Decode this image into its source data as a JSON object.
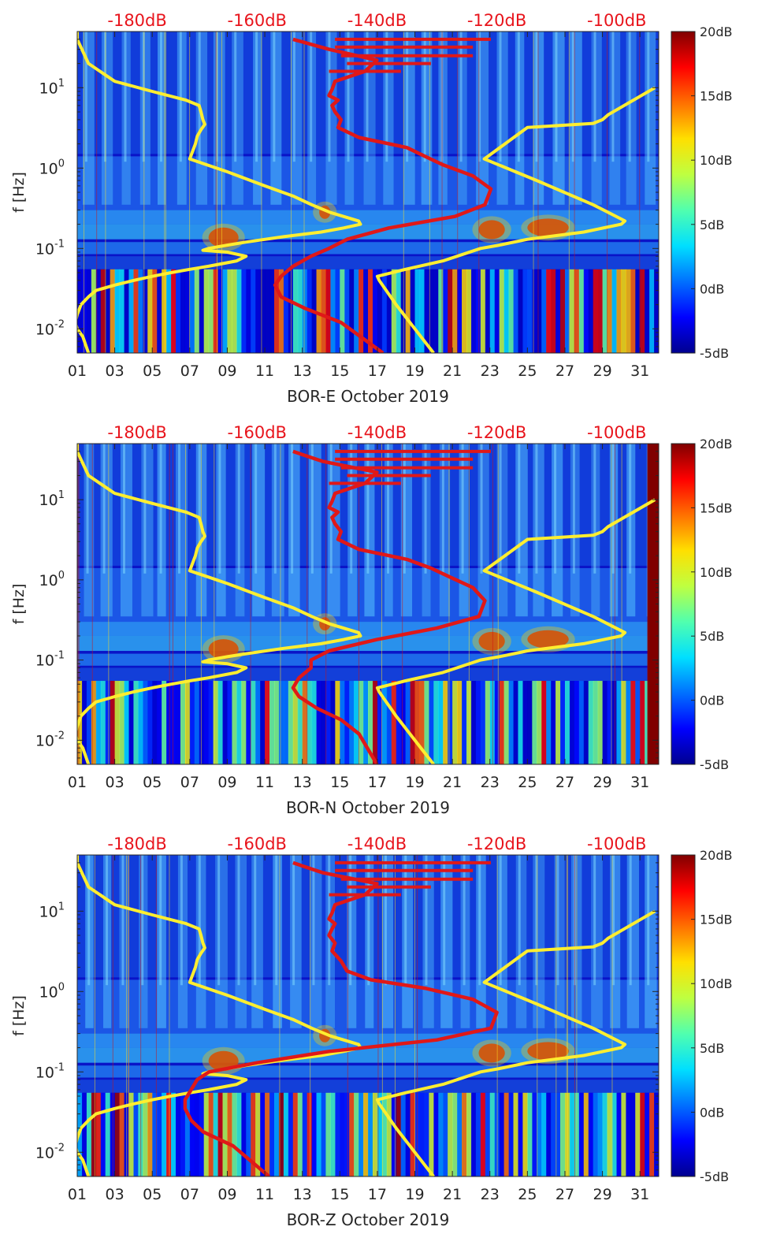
{
  "figure": {
    "colorbar_colors": [
      "#00008f",
      "#0000ff",
      "#0070ff",
      "#00dfff",
      "#50ffaf",
      "#bfff40",
      "#ffdf00",
      "#ff7000",
      "#ff0000",
      "#800000"
    ],
    "overlay_colors": {
      "noise_model": "#ffee30",
      "spectrum": "#e01818"
    }
  },
  "chart_data": [
    {
      "type": "heatmap",
      "xlabel": "BOR-E October 2019",
      "ylabel": "f [Hz]",
      "x_range_days": [
        1,
        32
      ],
      "x_ticks": [
        "01",
        "03",
        "05",
        "07",
        "09",
        "11",
        "13",
        "15",
        "17",
        "19",
        "21",
        "23",
        "25",
        "27",
        "29",
        "31"
      ],
      "y_scale": "log",
      "y_range_hz": [
        0.005,
        50
      ],
      "y_ticks": [
        {
          "value": 0.01,
          "base": "10",
          "exp": "-2"
        },
        {
          "value": 0.1,
          "base": "10",
          "exp": "-1"
        },
        {
          "value": 1,
          "base": "10",
          "exp": "0"
        },
        {
          "value": 10,
          "base": "10",
          "exp": "1"
        }
      ],
      "top_axis_labels": [
        "-180dB",
        "-160dB",
        "-140dB",
        "-120dB",
        "-100dB"
      ],
      "top_axis_range_db": [
        -190,
        -93
      ],
      "colorbar": {
        "range_db": [
          -5,
          20
        ],
        "ticks": [
          "20dB",
          "15dB",
          "10dB",
          "5dB",
          "0dB",
          "-5dB"
        ]
      },
      "noise_model_lines": [
        {
          "name": "",
          "x": [
            1.0,
            1.0,
            1.6,
            3.0,
            5.0,
            6.8,
            7.5,
            7.6,
            7.7,
            7.8,
            7.6,
            7.4,
            7.3,
            7.0,
            9.0,
            11.0,
            12.5,
            13.5,
            14.5,
            16.0,
            16.1,
            15.2,
            14.0,
            12.0,
            10.0,
            9.0,
            8.0,
            7.7,
            9.0,
            10.0,
            9.5,
            8.0,
            7.0,
            6.0,
            5.0,
            4.0,
            3.0,
            2.0,
            1.6,
            1.2,
            1.0,
            0.9,
            1.0,
            1.3,
            1.6
          ],
          "y": [
            50,
            40,
            20,
            12,
            9,
            7,
            6,
            5,
            4,
            3.5,
            3,
            2.5,
            2,
            1.3,
            0.9,
            0.6,
            0.45,
            0.35,
            0.28,
            0.22,
            0.2,
            0.18,
            0.16,
            0.14,
            0.12,
            0.11,
            0.1,
            0.095,
            0.09,
            0.08,
            0.07,
            0.06,
            0.055,
            0.05,
            0.045,
            0.04,
            0.035,
            0.03,
            0.025,
            0.02,
            0.015,
            0.012,
            0.01,
            0.008,
            0.005
          ]
        },
        {
          "name": "",
          "x": [
            31.8,
            29.3,
            29.0,
            28.5,
            25.0,
            22.7,
            25.5,
            28.5,
            30.2,
            30.0,
            28.0,
            25.0,
            23.5,
            22.5,
            20.5,
            18.5,
            17.0,
            17.1,
            18.0,
            19.0,
            20.0
          ],
          "y": [
            10,
            4.6,
            4.0,
            3.6,
            3.2,
            1.3,
            0.7,
            0.35,
            0.22,
            0.2,
            0.16,
            0.13,
            0.11,
            0.1,
            0.07,
            0.055,
            0.045,
            0.04,
            0.02,
            0.01,
            0.005
          ]
        }
      ],
      "spectrum_db": [
        -154,
        -148,
        -140,
        -142,
        -147,
        -147.5,
        -148,
        -146.5,
        -147.5,
        -147,
        -146,
        -146.5,
        -143,
        -135,
        -132,
        -129,
        -124,
        -121,
        -122,
        -127,
        -138,
        -145,
        -148,
        -151,
        -154,
        -156,
        -157,
        -156,
        -152,
        -146,
        -139
      ],
      "spectrum_f_hz": [
        40,
        30,
        22,
        16,
        12,
        9.5,
        8,
        7,
        6,
        5,
        4,
        3.2,
        2.4,
        1.8,
        1.4,
        1.1,
        0.8,
        0.55,
        0.35,
        0.25,
        0.18,
        0.13,
        0.1,
        0.08,
        0.06,
        0.045,
        0.035,
        0.025,
        0.018,
        0.012,
        0.005
      ],
      "spectrum_fine_lines_db": [
        [
          -147,
          -121
        ],
        [
          -147,
          -124
        ],
        [
          -146,
          -124
        ],
        [
          -145,
          -131
        ],
        [
          -148,
          -136
        ]
      ],
      "spectrum_fine_lines_f_hz": [
        40,
        32,
        25,
        20,
        16
      ]
    },
    {
      "type": "heatmap",
      "xlabel": "BOR-N October 2019",
      "ylabel": "f [Hz]",
      "x_range_days": [
        1,
        32
      ],
      "x_ticks": [
        "01",
        "03",
        "05",
        "07",
        "09",
        "11",
        "13",
        "15",
        "17",
        "19",
        "21",
        "23",
        "25",
        "27",
        "29",
        "31"
      ],
      "y_scale": "log",
      "y_range_hz": [
        0.005,
        50
      ],
      "y_ticks": [
        {
          "value": 0.01,
          "base": "10",
          "exp": "-2"
        },
        {
          "value": 0.1,
          "base": "10",
          "exp": "-1"
        },
        {
          "value": 1,
          "base": "10",
          "exp": "0"
        },
        {
          "value": 10,
          "base": "10",
          "exp": "1"
        }
      ],
      "top_axis_labels": [
        "-180dB",
        "-160dB",
        "-140dB",
        "-120dB",
        "-100dB"
      ],
      "top_axis_range_db": [
        -190,
        -93
      ],
      "colorbar": {
        "range_db": [
          -5,
          20
        ],
        "ticks": [
          "20dB",
          "15dB",
          "10dB",
          "5dB",
          "0dB",
          "-5dB"
        ]
      },
      "noise_model_lines": [
        {
          "name": "",
          "x": [
            1.0,
            1.0,
            1.6,
            3.0,
            5.0,
            6.8,
            7.5,
            7.6,
            7.7,
            7.8,
            7.6,
            7.4,
            7.3,
            7.0,
            9.0,
            11.0,
            12.5,
            13.5,
            14.5,
            16.0,
            16.1,
            15.2,
            14.0,
            12.0,
            10.0,
            9.0,
            8.0,
            7.7,
            9.0,
            10.0,
            9.5,
            8.0,
            7.0,
            6.0,
            5.0,
            4.0,
            3.0,
            2.0,
            1.6,
            1.2,
            1.0,
            0.9,
            1.0,
            1.3,
            1.6
          ],
          "y": [
            50,
            40,
            20,
            12,
            9,
            7,
            6,
            5,
            4,
            3.5,
            3,
            2.5,
            2,
            1.3,
            0.9,
            0.6,
            0.45,
            0.35,
            0.28,
            0.22,
            0.2,
            0.18,
            0.16,
            0.14,
            0.12,
            0.11,
            0.1,
            0.095,
            0.09,
            0.08,
            0.07,
            0.06,
            0.055,
            0.05,
            0.045,
            0.04,
            0.035,
            0.03,
            0.025,
            0.02,
            0.015,
            0.012,
            0.01,
            0.008,
            0.005
          ]
        },
        {
          "name": "",
          "x": [
            31.8,
            29.3,
            29.0,
            28.5,
            25.0,
            22.7,
            25.5,
            28.5,
            30.2,
            30.0,
            28.0,
            25.0,
            23.5,
            22.5,
            20.5,
            18.5,
            17.0,
            17.1,
            18.0,
            19.0,
            20.0
          ],
          "y": [
            10,
            4.6,
            4.0,
            3.6,
            3.2,
            1.3,
            0.7,
            0.35,
            0.22,
            0.2,
            0.16,
            0.13,
            0.11,
            0.1,
            0.07,
            0.055,
            0.045,
            0.04,
            0.02,
            0.01,
            0.005
          ]
        }
      ],
      "spectrum_db": [
        -154,
        -149,
        -140,
        -142,
        -147,
        -147.5,
        -148,
        -146.5,
        -147.5,
        -147,
        -146,
        -146.5,
        -143,
        -135,
        -131,
        -128,
        -124,
        -122,
        -123,
        -130,
        -140,
        -148,
        -151,
        -151,
        -153,
        -154,
        -153,
        -150,
        -146,
        -143,
        -140
      ],
      "spectrum_f_hz": [
        40,
        30,
        22,
        16,
        12,
        9.5,
        8,
        7,
        6,
        5,
        4,
        3.2,
        2.4,
        1.8,
        1.4,
        1.1,
        0.8,
        0.55,
        0.35,
        0.25,
        0.18,
        0.13,
        0.1,
        0.08,
        0.06,
        0.045,
        0.035,
        0.025,
        0.018,
        0.012,
        0.005
      ],
      "spectrum_fine_lines_db": [
        [
          -147,
          -121
        ],
        [
          -147,
          -124
        ],
        [
          -146,
          -124
        ],
        [
          -145,
          -131
        ],
        [
          -148,
          -136
        ]
      ],
      "spectrum_fine_lines_f_hz": [
        40,
        32,
        25,
        20,
        16
      ]
    },
    {
      "type": "heatmap",
      "xlabel": "BOR-Z October 2019",
      "ylabel": "f [Hz]",
      "x_range_days": [
        1,
        32
      ],
      "x_ticks": [
        "01",
        "03",
        "05",
        "07",
        "09",
        "11",
        "13",
        "15",
        "17",
        "19",
        "21",
        "23",
        "25",
        "27",
        "29",
        "31"
      ],
      "y_scale": "log",
      "y_range_hz": [
        0.005,
        50
      ],
      "y_ticks": [
        {
          "value": 0.01,
          "base": "10",
          "exp": "-2"
        },
        {
          "value": 0.1,
          "base": "10",
          "exp": "-1"
        },
        {
          "value": 1,
          "base": "10",
          "exp": "0"
        },
        {
          "value": 10,
          "base": "10",
          "exp": "1"
        }
      ],
      "top_axis_labels": [
        "-180dB",
        "-160dB",
        "-140dB",
        "-120dB",
        "-100dB"
      ],
      "top_axis_range_db": [
        -190,
        -93
      ],
      "colorbar": {
        "range_db": [
          -5,
          20
        ],
        "ticks": [
          "20dB",
          "15dB",
          "10dB",
          "5dB",
          "0dB",
          "-5dB"
        ]
      },
      "noise_model_lines": [
        {
          "name": "",
          "x": [
            1.0,
            1.0,
            1.6,
            3.0,
            5.0,
            6.8,
            7.5,
            7.6,
            7.7,
            7.8,
            7.6,
            7.4,
            7.3,
            7.0,
            9.0,
            11.0,
            12.5,
            13.5,
            14.5,
            16.0,
            16.1,
            15.2,
            14.0,
            12.0,
            10.0,
            9.0,
            8.0,
            7.7,
            9.0,
            10.0,
            9.5,
            8.0,
            7.0,
            6.0,
            5.0,
            4.0,
            3.0,
            2.0,
            1.6,
            1.2,
            1.0,
            0.9,
            1.0,
            1.3,
            1.6
          ],
          "y": [
            50,
            40,
            20,
            12,
            9,
            7,
            6,
            5,
            4,
            3.5,
            3,
            2.5,
            2,
            1.3,
            0.9,
            0.6,
            0.45,
            0.35,
            0.28,
            0.22,
            0.2,
            0.18,
            0.16,
            0.14,
            0.12,
            0.11,
            0.1,
            0.095,
            0.09,
            0.08,
            0.07,
            0.06,
            0.055,
            0.05,
            0.045,
            0.04,
            0.035,
            0.03,
            0.025,
            0.02,
            0.015,
            0.012,
            0.01,
            0.008,
            0.005
          ]
        },
        {
          "name": "",
          "x": [
            31.8,
            29.3,
            29.0,
            28.5,
            25.0,
            22.7,
            25.5,
            28.5,
            30.2,
            30.0,
            28.0,
            25.0,
            23.5,
            22.5,
            20.5,
            18.5,
            17.0,
            17.1,
            18.0,
            19.0,
            20.0
          ],
          "y": [
            10,
            4.6,
            4.0,
            3.6,
            3.2,
            1.3,
            0.7,
            0.35,
            0.22,
            0.2,
            0.16,
            0.13,
            0.11,
            0.1,
            0.07,
            0.055,
            0.045,
            0.04,
            0.02,
            0.01,
            0.005
          ]
        }
      ],
      "spectrum_db": [
        -154,
        -149,
        -140,
        -142,
        -147,
        -147.5,
        -148,
        -147,
        -147.5,
        -148,
        -147,
        -147.5,
        -146,
        -145,
        -141,
        -132,
        -124,
        -120,
        -121,
        -130,
        -148,
        -160,
        -168,
        -170,
        -171,
        -172,
        -172,
        -171,
        -169,
        -164,
        -158
      ],
      "spectrum_f_hz": [
        40,
        30,
        22,
        16,
        12,
        9.5,
        8,
        7,
        6,
        5,
        4,
        3.2,
        2.4,
        1.8,
        1.4,
        1.1,
        0.8,
        0.55,
        0.35,
        0.25,
        0.18,
        0.13,
        0.1,
        0.08,
        0.06,
        0.045,
        0.035,
        0.025,
        0.018,
        0.012,
        0.005
      ],
      "spectrum_fine_lines_db": [
        [
          -147,
          -121
        ],
        [
          -147,
          -124
        ],
        [
          -146,
          -124
        ],
        [
          -145,
          -131
        ],
        [
          -148,
          -136
        ]
      ],
      "spectrum_fine_lines_f_hz": [
        40,
        32,
        25,
        20,
        16
      ]
    }
  ]
}
